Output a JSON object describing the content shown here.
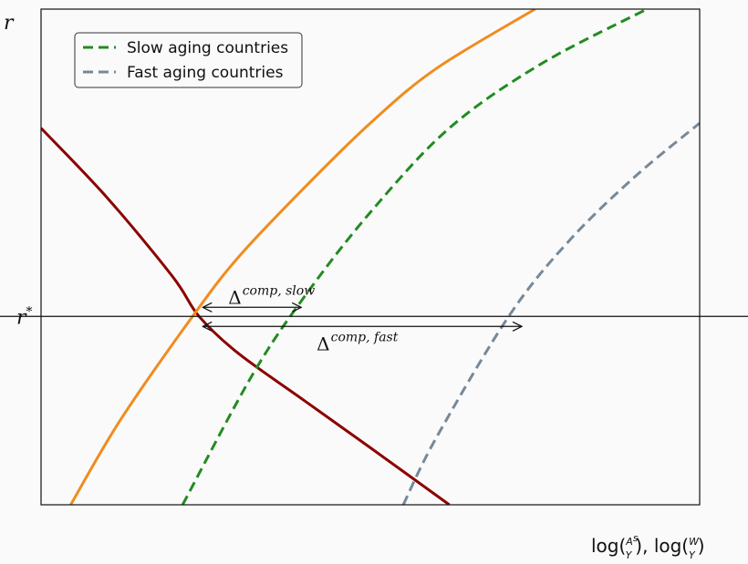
{
  "chart_data": {
    "type": "line",
    "ylabel": "r",
    "ytick_label": "r*",
    "xlabel_parts": [
      "log(",
      "A",
      "s",
      "Y",
      "),  log(",
      "W",
      "Y",
      ")"
    ],
    "xlim": [
      0,
      10
    ],
    "ylim": [
      0,
      10
    ],
    "rstar": 3.8,
    "legend": {
      "placement": "top-left",
      "entries": [
        {
          "label": "Slow aging countries",
          "color": "#228b22",
          "style": "dashed"
        },
        {
          "label": "Fast aging countries",
          "color": "#778899",
          "style": "dashed"
        }
      ]
    },
    "series": [
      {
        "color": "#8b0000",
        "style": "solid",
        "x": [
          0,
          1,
          2,
          2.4,
          3,
          4,
          5,
          6.2
        ],
        "y": [
          7.6,
          6.2,
          4.6,
          3.8,
          3.05,
          2.1,
          1.15,
          0
        ]
      },
      {
        "color": "#f08c1e",
        "style": "solid",
        "x": [
          0.45,
          1.2,
          2.3,
          3,
          4,
          5,
          6,
          7.5
        ],
        "y": [
          0,
          1.7,
          3.8,
          5.0,
          6.4,
          7.7,
          8.8,
          10
        ]
      },
      {
        "name": "Slow aging countries",
        "color": "#228b22",
        "style": "dashed",
        "x": [
          2.15,
          3.2,
          4.0,
          5.0,
          6.2,
          7.6,
          9.2
        ],
        "y": [
          0,
          2.6,
          4.2,
          5.9,
          7.6,
          8.9,
          10
        ]
      },
      {
        "name": "Fast aging countries",
        "color": "#778899",
        "style": "dashed",
        "x": [
          5.5,
          6.0,
          7.1,
          8.0,
          9.0,
          10.0
        ],
        "y": [
          0,
          1.35,
          3.8,
          5.3,
          6.6,
          7.7
        ]
      }
    ],
    "annotations": [
      {
        "base": "Δ",
        "sup": "comp, slow",
        "from": [
          2.4,
          3.8
        ],
        "to": [
          3.95,
          3.8
        ],
        "label_pos": "above"
      },
      {
        "base": "Δ",
        "sup": "comp, fast",
        "from": [
          2.4,
          3.8
        ],
        "to": [
          7.3,
          3.8
        ],
        "label_pos": "below"
      }
    ]
  }
}
